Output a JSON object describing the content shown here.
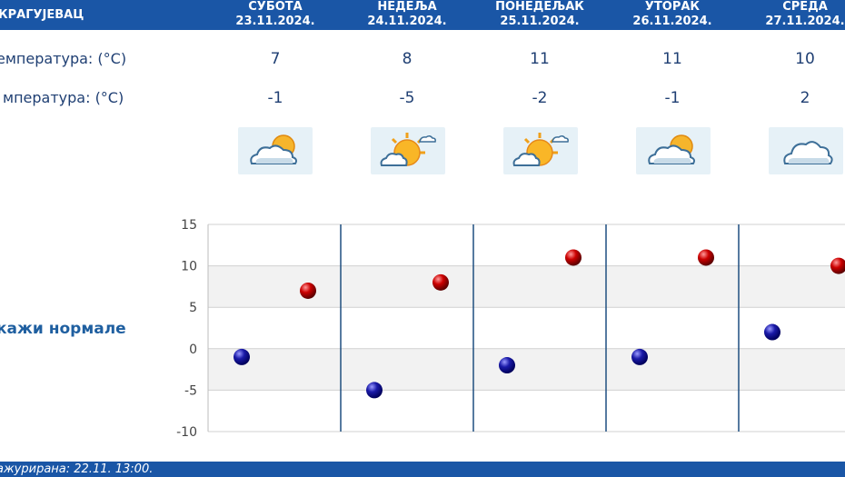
{
  "header": {
    "station": "КРАГУЈЕВАЦ"
  },
  "days": [
    {
      "name": "СУБОТА",
      "date": "23.11.2024.",
      "tmax": "7",
      "tmin": "-1",
      "icon": "partly-cloudy-icon"
    },
    {
      "name": "НЕДЕЉА",
      "date": "24.11.2024.",
      "tmax": "8",
      "tmin": "-5",
      "icon": "mostly-sunny-icon"
    },
    {
      "name": "ПОНЕДЕЉАК",
      "date": "25.11.2024.",
      "tmax": "11",
      "tmin": "-2",
      "icon": "mostly-sunny-icon"
    },
    {
      "name": "УТОРАК",
      "date": "26.11.2024.",
      "tmax": "11",
      "tmin": "-1",
      "icon": "partly-cloudy-icon"
    },
    {
      "name": "СРЕДА",
      "date": "27.11.2024.",
      "tmax": "10",
      "tmin": "2",
      "icon": "cloudy-icon"
    }
  ],
  "rows": {
    "tmax_label": "емпература: (°C)",
    "tmin_label": "мпература: (°C)"
  },
  "normals_link": "кажи нормале",
  "footer": {
    "updated": "ажурирана:  22.11. 13:00."
  },
  "colors": {
    "header": "#1a56a6",
    "max_point": "#cc0000",
    "min_point": "#1a1aa8",
    "grid_band": "#f2f2f2"
  },
  "chart_data": {
    "type": "scatter",
    "categories": [
      "23.11.2024.",
      "24.11.2024.",
      "25.11.2024.",
      "26.11.2024.",
      "27.11.2024."
    ],
    "series": [
      {
        "values": [
          7,
          8,
          11,
          11,
          10
        ]
      },
      {
        "values": [
          -1,
          -5,
          -2,
          -1,
          2
        ]
      }
    ],
    "ylim": [
      -10,
      15
    ],
    "yticks": [
      "15",
      "10",
      "5",
      "0",
      "-5",
      "-10"
    ],
    "grid": true
  }
}
